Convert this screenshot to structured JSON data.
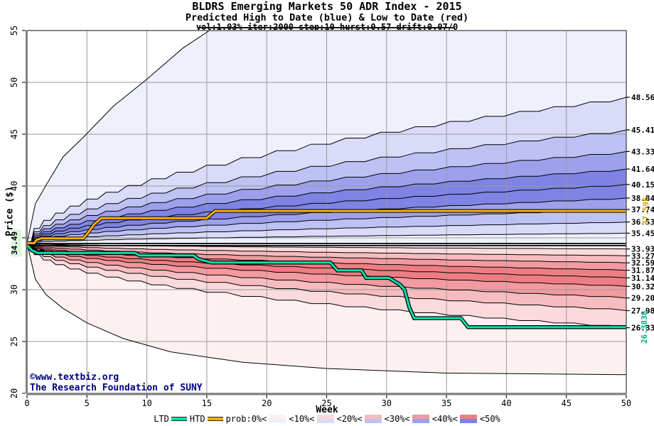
{
  "title": {
    "line1": "BLDRS Emerging Markets 50 ADR Index - 2015",
    "line2": "Predicted High to Date (blue) &  Low to Date (red)",
    "line3": "vol:1.03% iter:2000 step:10 hurst:0.57 drift:0.07/0"
  },
  "footer": {
    "line1": "©www.textbiz.org",
    "line2": "The Research Foundation of SUNY"
  },
  "colors": {
    "teal_line": "#0be0ad",
    "teal_label": "#00ae85",
    "orange_line": "#ffb000",
    "orange_label": "#d99e00",
    "navy": "#000080",
    "grid": "#9a9a9a",
    "frame": "#555555",
    "start_label_bg": "#dcf6dc",
    "blue_bands": [
      "#eef0fc",
      "#d9dbf8",
      "#bec1f3",
      "#9da1ec",
      "#7e83e4"
    ],
    "red_bands": [
      "#fdf0f1",
      "#fadadc",
      "#f6bcc0",
      "#f29a9f",
      "#ee7d83"
    ]
  },
  "legend": {
    "items": [
      {
        "label": "LTD",
        "swatch": "line-teal"
      },
      {
        "label": "HTD",
        "swatch": "line-orange"
      },
      {
        "label": "prob:0%<",
        "swatch": "band-0"
      },
      {
        "label": "<10%<",
        "swatch": "band-1"
      },
      {
        "label": "<20%<",
        "swatch": "band-2"
      },
      {
        "label": "<30%<",
        "swatch": "band-3"
      },
      {
        "label": "<40%<",
        "swatch": "band-4"
      },
      {
        "label": "<50%",
        "swatch": "none"
      }
    ]
  },
  "chart_data": {
    "type": "area",
    "description": "Monte-Carlo decile fan chart: predicted high-to-date (blue bands) and low-to-date (red bands) with actual HTD (orange) and LTD (teal) staircase lines",
    "x": {
      "label": "Week",
      "min": 0,
      "max": 50,
      "ticks": [
        {
          "v": 0,
          "label": "0"
        },
        {
          "v": 5,
          "label": "5"
        },
        {
          "v": 10,
          "label": "10"
        },
        {
          "v": 15,
          "label": "15"
        },
        {
          "v": 20,
          "label": "20"
        },
        {
          "v": 25,
          "label": "25"
        },
        {
          "v": 30,
          "label": "30"
        },
        {
          "v": 35,
          "label": "35"
        },
        {
          "v": 40,
          "label": "40"
        },
        {
          "v": 45,
          "label": "45"
        },
        {
          "v": 50,
          "label": "50"
        }
      ]
    },
    "y": {
      "label": "Price ($)",
      "min": 20,
      "max": 55,
      "ticks": [
        {
          "v": 20,
          "label": "20"
        },
        {
          "v": 25,
          "label": "25"
        },
        {
          "v": 30,
          "label": "30"
        },
        {
          "v": 35,
          "label": ""
        },
        {
          "v": 40,
          "label": "40"
        },
        {
          "v": 45,
          "label": "45"
        },
        {
          "v": 50,
          "label": "50"
        },
        {
          "v": 55,
          "label": "55"
        }
      ]
    },
    "start_price": 34.49,
    "start_price_label": "34.49",
    "curve_exponent_high": 0.52,
    "curve_exponent_low": 0.45,
    "htd": {
      "decile_week50_values": [
        48.56,
        45.41,
        43.33,
        41.64,
        40.15,
        38.84,
        37.74,
        36.53,
        35.45
      ],
      "decile_labels": [
        "48.56",
        "45.41",
        "43.33",
        "41.64",
        "40.15",
        "38.84",
        "37.74",
        "36.53",
        "35.45"
      ],
      "base_value": 34.45,
      "envelope_points": [
        [
          0,
          34.49
        ],
        [
          0.7,
          38.3
        ],
        [
          1.6,
          40.1
        ],
        [
          3,
          42.8
        ],
        [
          4.7,
          44.7
        ],
        [
          7.2,
          47.7
        ],
        [
          10,
          50.3
        ],
        [
          13,
          53.3
        ],
        [
          16,
          55.6
        ],
        [
          20,
          56.8
        ],
        [
          50,
          58.5
        ]
      ],
      "current_value": 37.596,
      "current_label": "37.596",
      "line_points": [
        [
          0,
          34.49
        ],
        [
          0.6,
          34.49
        ],
        [
          0.8,
          34.8
        ],
        [
          1.2,
          34.95
        ],
        [
          4.7,
          34.95
        ],
        [
          5.1,
          35.5
        ],
        [
          5.6,
          36.3
        ],
        [
          6.2,
          36.9
        ],
        [
          15.0,
          36.9
        ],
        [
          15.4,
          37.3
        ],
        [
          15.7,
          37.596
        ],
        [
          50,
          37.596
        ]
      ]
    },
    "ltd": {
      "decile_week50_values": [
        33.93,
        33.27,
        32.59,
        31.87,
        31.14,
        30.32,
        29.2,
        27.98,
        26.33
      ],
      "decile_labels": [
        "33.93",
        "33.27",
        "32.59",
        "31.87",
        "31.14",
        "30.32",
        "29.20",
        "27.98",
        "26.33"
      ],
      "top_value": 34.25,
      "envelope_points": [
        [
          0,
          34.49
        ],
        [
          0.7,
          31.0
        ],
        [
          1.6,
          29.5
        ],
        [
          3,
          28.2
        ],
        [
          5,
          26.8
        ],
        [
          8,
          25.3
        ],
        [
          12,
          24.0
        ],
        [
          18,
          23.0
        ],
        [
          25,
          22.4
        ],
        [
          35,
          21.95
        ],
        [
          50,
          21.8
        ]
      ],
      "current_value": 26.3838,
      "current_label": "26.3838",
      "line_points": [
        [
          0,
          34.3
        ],
        [
          0.4,
          33.8
        ],
        [
          0.9,
          33.55
        ],
        [
          9.0,
          33.55
        ],
        [
          9.4,
          33.3
        ],
        [
          13.9,
          33.3
        ],
        [
          14.3,
          32.95
        ],
        [
          15.4,
          32.62
        ],
        [
          25.3,
          32.62
        ],
        [
          25.9,
          31.87
        ],
        [
          27.9,
          31.87
        ],
        [
          28.3,
          31.14
        ],
        [
          30.2,
          31.14
        ],
        [
          31.1,
          30.5
        ],
        [
          31.5,
          30.0
        ],
        [
          31.9,
          28.3
        ],
        [
          32.3,
          27.25
        ],
        [
          36.2,
          27.25
        ],
        [
          36.8,
          26.3838
        ],
        [
          50,
          26.3838
        ]
      ]
    },
    "actual_price_points": [
      [
        0,
        34.49
      ],
      [
        0.15,
        33.95
      ],
      [
        0.3,
        34.25
      ],
      [
        0.5,
        33.7
      ],
      [
        0.7,
        33.95
      ],
      [
        0.95,
        33.6
      ],
      [
        1.2,
        33.85
      ],
      [
        1.45,
        33.7
      ]
    ],
    "band_intensities": [
      0,
      1,
      2,
      3,
      4,
      4,
      3,
      2,
      1,
      0
    ]
  }
}
